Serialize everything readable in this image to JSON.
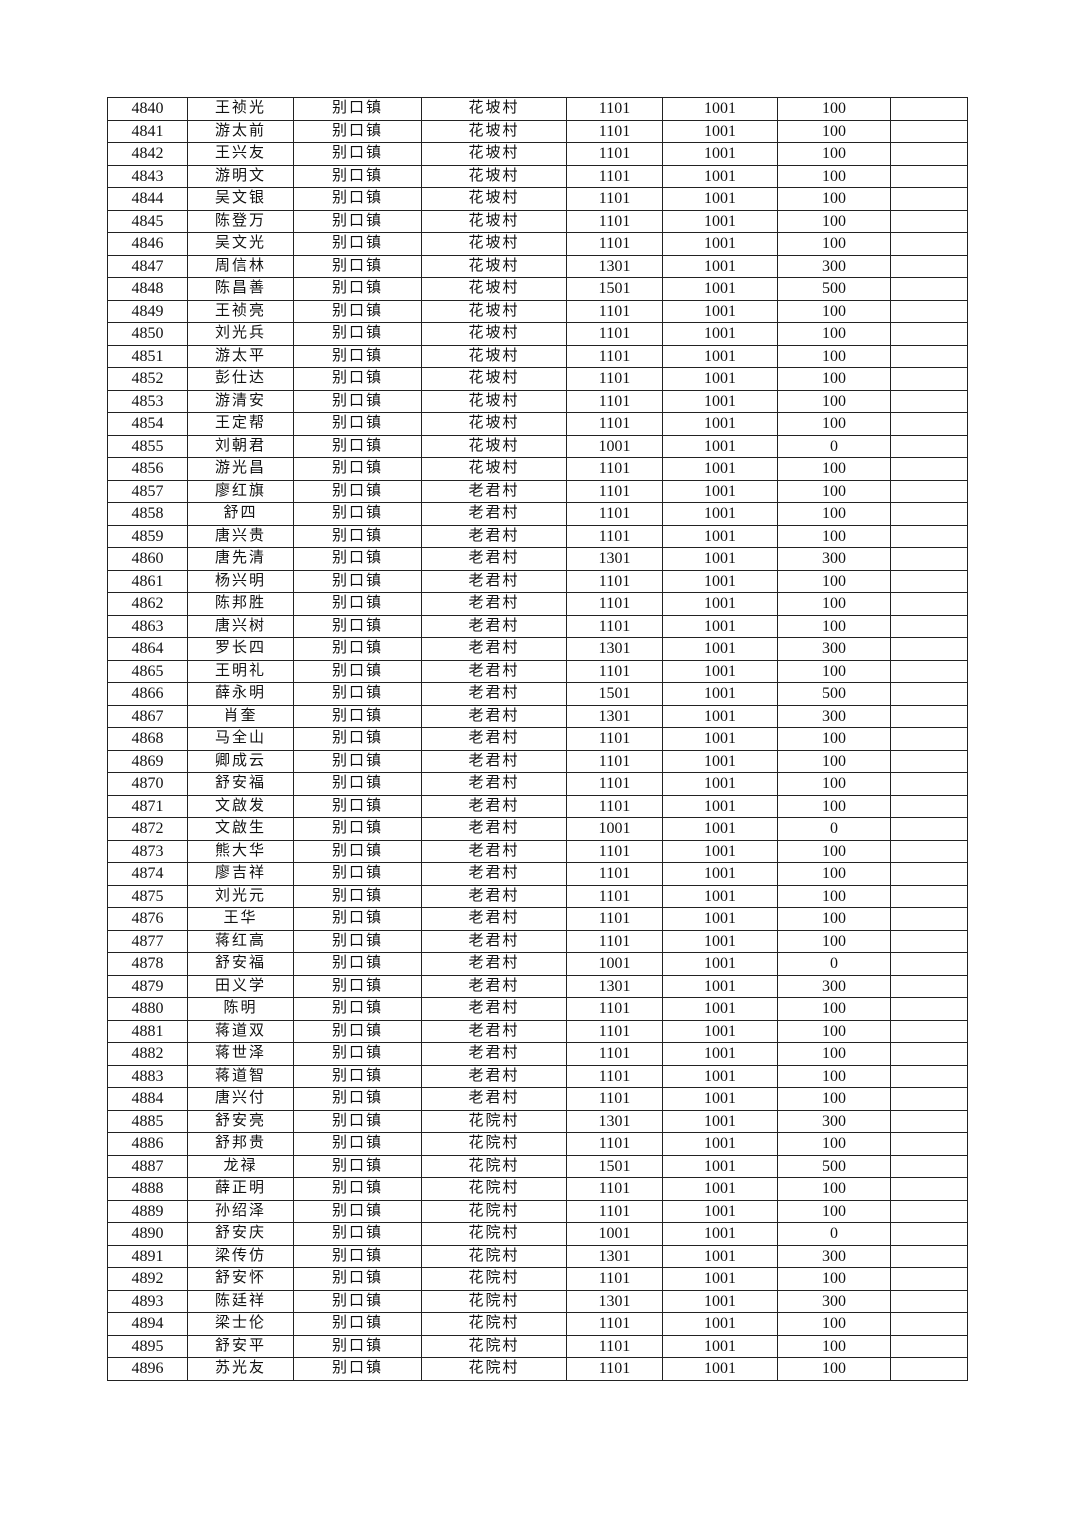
{
  "table": {
    "rows": [
      [
        "4840",
        "王祯光",
        "别口镇",
        "花坡村",
        "1101",
        "1001",
        "100",
        ""
      ],
      [
        "4841",
        "游太前",
        "别口镇",
        "花坡村",
        "1101",
        "1001",
        "100",
        ""
      ],
      [
        "4842",
        "王兴友",
        "别口镇",
        "花坡村",
        "1101",
        "1001",
        "100",
        ""
      ],
      [
        "4843",
        "游明文",
        "别口镇",
        "花坡村",
        "1101",
        "1001",
        "100",
        ""
      ],
      [
        "4844",
        "吴文银",
        "别口镇",
        "花坡村",
        "1101",
        "1001",
        "100",
        ""
      ],
      [
        "4845",
        "陈登万",
        "别口镇",
        "花坡村",
        "1101",
        "1001",
        "100",
        ""
      ],
      [
        "4846",
        "吴文光",
        "别口镇",
        "花坡村",
        "1101",
        "1001",
        "100",
        ""
      ],
      [
        "4847",
        "周信林",
        "别口镇",
        "花坡村",
        "1301",
        "1001",
        "300",
        ""
      ],
      [
        "4848",
        "陈昌善",
        "别口镇",
        "花坡村",
        "1501",
        "1001",
        "500",
        ""
      ],
      [
        "4849",
        "王祯亮",
        "别口镇",
        "花坡村",
        "1101",
        "1001",
        "100",
        ""
      ],
      [
        "4850",
        "刘光兵",
        "别口镇",
        "花坡村",
        "1101",
        "1001",
        "100",
        ""
      ],
      [
        "4851",
        "游太平",
        "别口镇",
        "花坡村",
        "1101",
        "1001",
        "100",
        ""
      ],
      [
        "4852",
        "彭仕达",
        "别口镇",
        "花坡村",
        "1101",
        "1001",
        "100",
        ""
      ],
      [
        "4853",
        "游清安",
        "别口镇",
        "花坡村",
        "1101",
        "1001",
        "100",
        ""
      ],
      [
        "4854",
        "王定帮",
        "别口镇",
        "花坡村",
        "1101",
        "1001",
        "100",
        ""
      ],
      [
        "4855",
        "刘朝君",
        "别口镇",
        "花坡村",
        "1001",
        "1001",
        "0",
        ""
      ],
      [
        "4856",
        "游光昌",
        "别口镇",
        "花坡村",
        "1101",
        "1001",
        "100",
        ""
      ],
      [
        "4857",
        "廖红旗",
        "别口镇",
        "老君村",
        "1101",
        "1001",
        "100",
        ""
      ],
      [
        "4858",
        "舒四",
        "别口镇",
        "老君村",
        "1101",
        "1001",
        "100",
        ""
      ],
      [
        "4859",
        "唐兴贵",
        "别口镇",
        "老君村",
        "1101",
        "1001",
        "100",
        ""
      ],
      [
        "4860",
        "唐先清",
        "别口镇",
        "老君村",
        "1301",
        "1001",
        "300",
        ""
      ],
      [
        "4861",
        "杨兴明",
        "别口镇",
        "老君村",
        "1101",
        "1001",
        "100",
        ""
      ],
      [
        "4862",
        "陈邦胜",
        "别口镇",
        "老君村",
        "1101",
        "1001",
        "100",
        ""
      ],
      [
        "4863",
        "唐兴树",
        "别口镇",
        "老君村",
        "1101",
        "1001",
        "100",
        ""
      ],
      [
        "4864",
        "罗长四",
        "别口镇",
        "老君村",
        "1301",
        "1001",
        "300",
        ""
      ],
      [
        "4865",
        "王明礼",
        "别口镇",
        "老君村",
        "1101",
        "1001",
        "100",
        ""
      ],
      [
        "4866",
        "薛永明",
        "别口镇",
        "老君村",
        "1501",
        "1001",
        "500",
        ""
      ],
      [
        "4867",
        "肖奎",
        "别口镇",
        "老君村",
        "1301",
        "1001",
        "300",
        ""
      ],
      [
        "4868",
        "马全山",
        "别口镇",
        "老君村",
        "1101",
        "1001",
        "100",
        ""
      ],
      [
        "4869",
        "卿成云",
        "别口镇",
        "老君村",
        "1101",
        "1001",
        "100",
        ""
      ],
      [
        "4870",
        "舒安福",
        "别口镇",
        "老君村",
        "1101",
        "1001",
        "100",
        ""
      ],
      [
        "4871",
        "文啟发",
        "别口镇",
        "老君村",
        "1101",
        "1001",
        "100",
        ""
      ],
      [
        "4872",
        "文啟生",
        "别口镇",
        "老君村",
        "1001",
        "1001",
        "0",
        ""
      ],
      [
        "4873",
        "熊大华",
        "别口镇",
        "老君村",
        "1101",
        "1001",
        "100",
        ""
      ],
      [
        "4874",
        "廖吉祥",
        "别口镇",
        "老君村",
        "1101",
        "1001",
        "100",
        ""
      ],
      [
        "4875",
        "刘光元",
        "别口镇",
        "老君村",
        "1101",
        "1001",
        "100",
        ""
      ],
      [
        "4876",
        "王华",
        "别口镇",
        "老君村",
        "1101",
        "1001",
        "100",
        ""
      ],
      [
        "4877",
        "蒋红高",
        "别口镇",
        "老君村",
        "1101",
        "1001",
        "100",
        ""
      ],
      [
        "4878",
        "舒安福",
        "别口镇",
        "老君村",
        "1001",
        "1001",
        "0",
        ""
      ],
      [
        "4879",
        "田义学",
        "别口镇",
        "老君村",
        "1301",
        "1001",
        "300",
        ""
      ],
      [
        "4880",
        "陈明",
        "别口镇",
        "老君村",
        "1101",
        "1001",
        "100",
        ""
      ],
      [
        "4881",
        "蒋道双",
        "别口镇",
        "老君村",
        "1101",
        "1001",
        "100",
        ""
      ],
      [
        "4882",
        "蒋世泽",
        "别口镇",
        "老君村",
        "1101",
        "1001",
        "100",
        ""
      ],
      [
        "4883",
        "蒋道智",
        "别口镇",
        "老君村",
        "1101",
        "1001",
        "100",
        ""
      ],
      [
        "4884",
        "唐兴付",
        "别口镇",
        "老君村",
        "1101",
        "1001",
        "100",
        ""
      ],
      [
        "4885",
        "舒安亮",
        "别口镇",
        "花院村",
        "1301",
        "1001",
        "300",
        ""
      ],
      [
        "4886",
        "舒邦贵",
        "别口镇",
        "花院村",
        "1101",
        "1001",
        "100",
        ""
      ],
      [
        "4887",
        "龙禄",
        "别口镇",
        "花院村",
        "1501",
        "1001",
        "500",
        ""
      ],
      [
        "4888",
        "薛正明",
        "别口镇",
        "花院村",
        "1101",
        "1001",
        "100",
        ""
      ],
      [
        "4889",
        "孙绍泽",
        "别口镇",
        "花院村",
        "1101",
        "1001",
        "100",
        ""
      ],
      [
        "4890",
        "舒安庆",
        "别口镇",
        "花院村",
        "1001",
        "1001",
        "0",
        ""
      ],
      [
        "4891",
        "梁传仿",
        "别口镇",
        "花院村",
        "1301",
        "1001",
        "300",
        ""
      ],
      [
        "4892",
        "舒安怀",
        "别口镇",
        "花院村",
        "1101",
        "1001",
        "100",
        ""
      ],
      [
        "4893",
        "陈廷祥",
        "别口镇",
        "花院村",
        "1301",
        "1001",
        "300",
        ""
      ],
      [
        "4894",
        "梁士伦",
        "别口镇",
        "花院村",
        "1101",
        "1001",
        "100",
        ""
      ],
      [
        "4895",
        "舒安平",
        "别口镇",
        "花院村",
        "1101",
        "1001",
        "100",
        ""
      ],
      [
        "4896",
        "苏光友",
        "别口镇",
        "花院村",
        "1101",
        "1001",
        "100",
        ""
      ]
    ]
  }
}
